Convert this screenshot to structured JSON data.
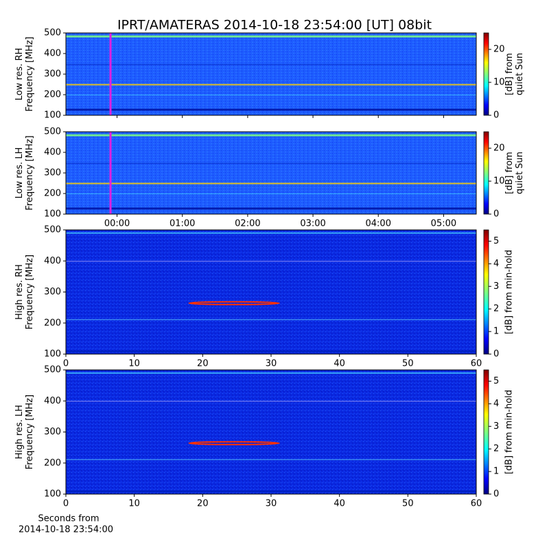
{
  "title": "IPRT/AMATERAS 2014-10-18 23:54:00 [UT]   08bit",
  "chart_data": [
    {
      "type": "heatmap",
      "ylabel": [
        "Low res. RH",
        "Frequency [MHz]"
      ],
      "ylim": [
        100,
        500
      ],
      "yticks": [
        100,
        200,
        300,
        400,
        500
      ],
      "xlim": [
        "23:13",
        "05:30"
      ],
      "marker": "23:54",
      "marker_color": "#e020e0",
      "colormap": "jet",
      "colorbar": {
        "label": [
          "[dB] from",
          "quiet Sun"
        ],
        "lim": [
          0,
          25
        ],
        "ticks": [
          0,
          10,
          20
        ]
      }
    },
    {
      "type": "heatmap",
      "ylabel": [
        "Low res. LH",
        "Frequency [MHz]"
      ],
      "ylim": [
        100,
        500
      ],
      "yticks": [
        100,
        200,
        300,
        400,
        500
      ],
      "xlim": [
        "23:13",
        "05:30"
      ],
      "xticks": [
        "00:00",
        "01:00",
        "02:00",
        "03:00",
        "04:00",
        "05:00"
      ],
      "marker": "23:54",
      "marker_color": "#e020e0",
      "colormap": "jet",
      "colorbar": {
        "label": [
          "[dB] from",
          "quiet Sun"
        ],
        "lim": [
          0,
          25
        ],
        "ticks": [
          0,
          10,
          20
        ]
      }
    },
    {
      "type": "heatmap",
      "ylabel": [
        "High res. RH",
        "Frequency [MHz]"
      ],
      "ylim": [
        100,
        500
      ],
      "yticks": [
        100,
        200,
        300,
        400,
        500
      ],
      "xlim": [
        0,
        60
      ],
      "xticks": [
        0,
        10,
        20,
        30,
        40,
        50,
        60
      ],
      "colormap": "jet",
      "colorbar": {
        "label": [
          "[dB] from min-hold"
        ],
        "lim": [
          0,
          5.5
        ],
        "ticks": [
          0,
          1,
          2,
          3,
          4,
          5
        ]
      }
    },
    {
      "type": "heatmap",
      "ylabel": [
        "High res. LH",
        "Frequency [MHz]"
      ],
      "ylim": [
        100,
        500
      ],
      "yticks": [
        100,
        200,
        300,
        400,
        500
      ],
      "xlim": [
        0,
        60
      ],
      "xticks": [
        0,
        10,
        20,
        30,
        40,
        50,
        60
      ],
      "xlabel": [
        "Seconds from",
        "2014-10-18 23:54:00"
      ],
      "colormap": "jet",
      "colorbar": {
        "label": [
          "[dB] from min-hold"
        ],
        "lim": [
          0,
          5.5
        ],
        "ticks": [
          0,
          1,
          2,
          3,
          4,
          5
        ]
      }
    }
  ]
}
